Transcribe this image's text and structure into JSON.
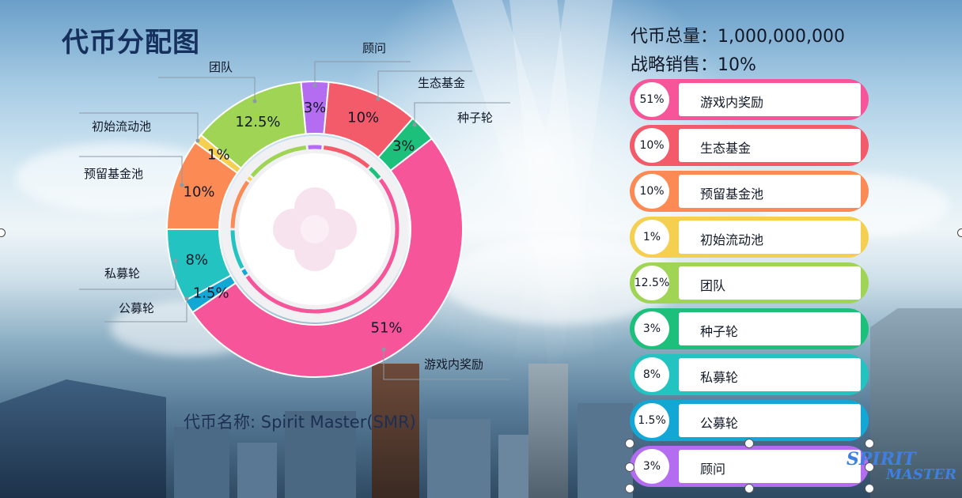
{
  "title": "代币分配图",
  "total_supply_text": "代币总量：1,000,000,000",
  "strategic_sale_text": "战略销售：10%",
  "token_name_text": "代币名称: Spirit Master(SMR)",
  "logo": {
    "line1": "SPIRIT",
    "line2": "MASTER"
  },
  "colors": {
    "game_rewards": "#f6559a",
    "eco_fund": "#f35b6a",
    "reserve_pool": "#fb8a54",
    "liquidity": "#f4cf50",
    "team": "#9fd454",
    "seed": "#1cc07a",
    "private": "#22c3c0",
    "public": "#13a7d6",
    "advisor": "#b46cf0"
  },
  "chart_data": {
    "type": "pie",
    "variant": "donut",
    "title": "代币分配图",
    "categories": [
      "游戏内奖励",
      "生态基金",
      "预留基金池",
      "初始流动池",
      "团队",
      "种子轮",
      "私募轮",
      "公募轮",
      "顾问"
    ],
    "values": [
      51,
      10,
      10,
      1,
      12.5,
      3,
      8,
      1.5,
      3
    ],
    "value_labels": [
      "51%",
      "10%",
      "10%",
      "1%",
      "12.5%",
      "3%",
      "8%",
      "1.5%",
      "3%"
    ],
    "unit": "%"
  },
  "legend": [
    {
      "pct": "51%",
      "name": "游戏内奖励",
      "color_key": "game_rewards"
    },
    {
      "pct": "10%",
      "name": "生态基金",
      "color_key": "eco_fund"
    },
    {
      "pct": "10%",
      "name": "预留基金池",
      "color_key": "reserve_pool"
    },
    {
      "pct": "1%",
      "name": "初始流动池",
      "color_key": "liquidity"
    },
    {
      "pct": "12.5%",
      "name": "团队",
      "color_key": "team"
    },
    {
      "pct": "3%",
      "name": "种子轮",
      "color_key": "seed"
    },
    {
      "pct": "8%",
      "name": "私募轮",
      "color_key": "private"
    },
    {
      "pct": "1.5%",
      "name": "公募轮",
      "color_key": "public"
    },
    {
      "pct": "3%",
      "name": "顾问",
      "color_key": "advisor"
    }
  ]
}
